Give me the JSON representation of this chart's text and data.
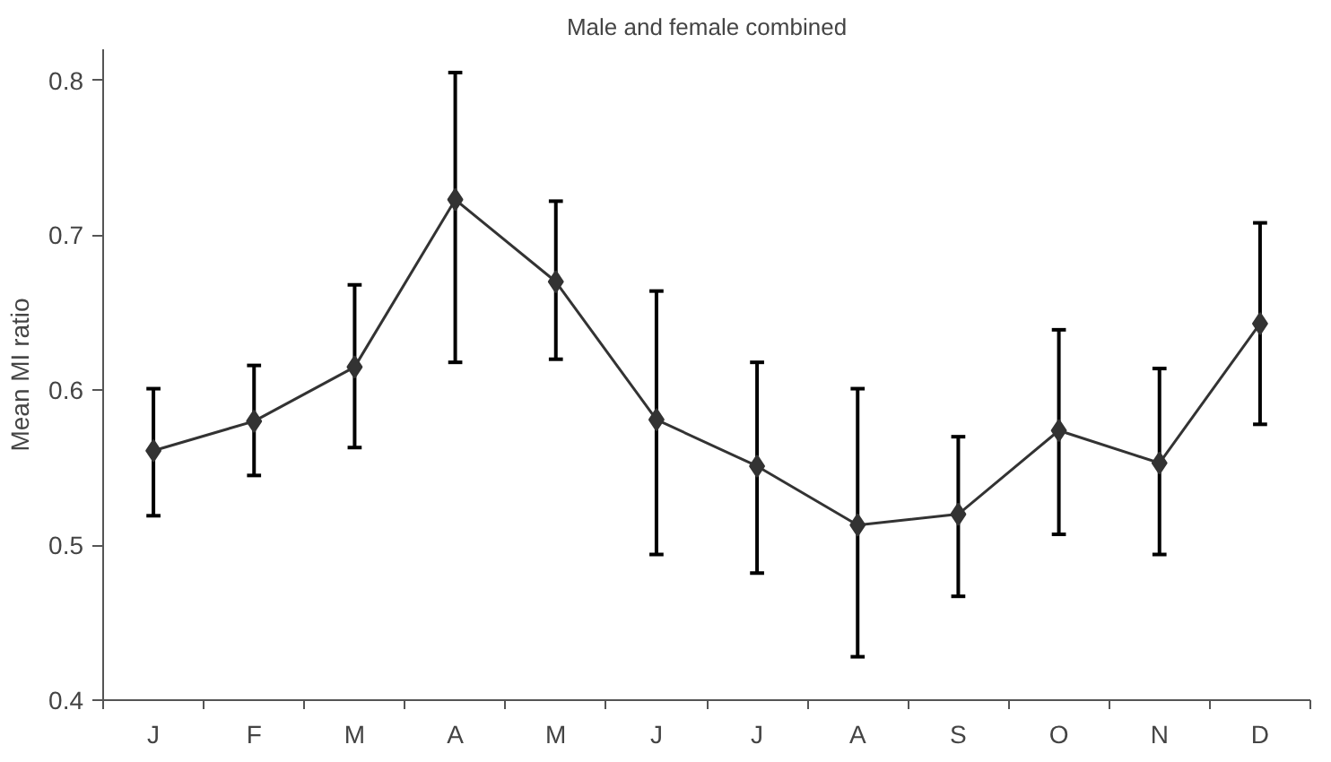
{
  "chart_data": {
    "type": "line",
    "title": "Male and female combined",
    "ylabel": "Mean MI ratio",
    "categories": [
      "J",
      "F",
      "M",
      "A",
      "M",
      "J",
      "J",
      "A",
      "S",
      "O",
      "N",
      "D"
    ],
    "series": [
      {
        "color": "#333333",
        "values": [
          0.561,
          0.58,
          0.615,
          0.723,
          0.67,
          0.581,
          0.551,
          0.513,
          0.52,
          0.574,
          0.553,
          0.643
        ],
        "errors": [
          [
            0.519,
            0.601
          ],
          [
            0.545,
            0.616
          ],
          [
            0.563,
            0.668
          ],
          [
            0.618,
            0.805
          ],
          [
            0.62,
            0.722
          ],
          [
            0.494,
            0.664
          ],
          [
            0.482,
            0.618
          ],
          [
            0.428,
            0.601
          ],
          [
            0.467,
            0.57
          ],
          [
            0.507,
            0.639
          ],
          [
            0.494,
            0.614
          ],
          [
            0.578,
            0.708
          ]
        ]
      }
    ],
    "ylim": [
      0.4,
      0.82
    ],
    "yticks": [
      0.4,
      0.5,
      0.6,
      0.7,
      0.8
    ],
    "marker": "diamond",
    "line_style": "solid",
    "grid": false
  }
}
